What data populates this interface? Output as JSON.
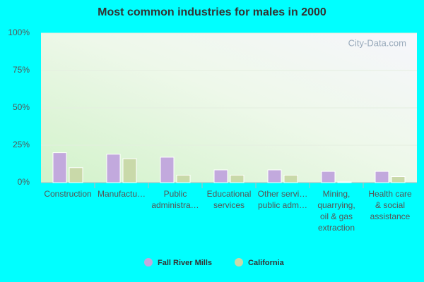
{
  "chart_data": {
    "type": "bar",
    "title": "Most common industries for males in 2000",
    "watermark": "City-Data.com",
    "categories": [
      "Construction",
      "Manufactu…",
      "Public\nadministra…",
      "Educational\nservices",
      "Other servi…\npublic adm…",
      "Mining,\nquarrying,\noil & gas\nextraction",
      "Health care\n& social\nassistance"
    ],
    "series": [
      {
        "name": "Fall River Mills",
        "color": "#c2a9dd",
        "values": [
          20,
          19,
          17,
          8.5,
          8.5,
          7.5,
          7.5
        ]
      },
      {
        "name": "California",
        "color": "#c9d9a9",
        "values": [
          10,
          16,
          5,
          5,
          5,
          0.5,
          4
        ]
      }
    ],
    "ylim": [
      0,
      100
    ],
    "yticks": [
      {
        "value": 0,
        "label": "0%"
      },
      {
        "value": 25,
        "label": "25%"
      },
      {
        "value": 50,
        "label": "50%"
      },
      {
        "value": 75,
        "label": "75%"
      },
      {
        "value": 100,
        "label": "100%"
      }
    ],
    "grid": true
  }
}
